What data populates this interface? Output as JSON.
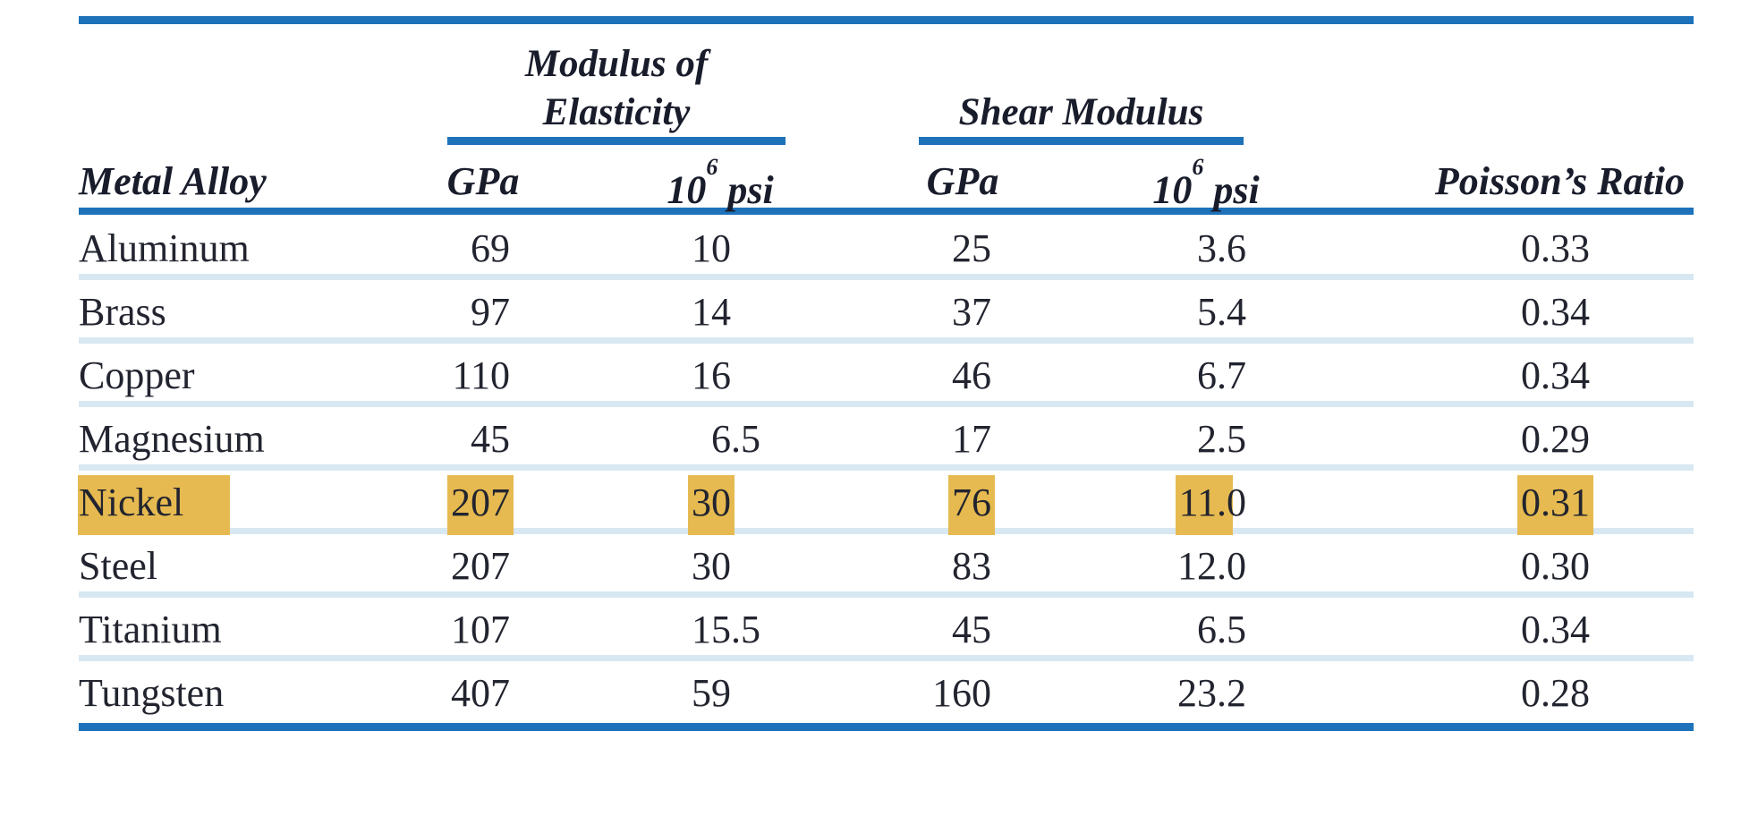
{
  "table": {
    "group1": {
      "line1": "Modulus of",
      "line2": "Elasticity"
    },
    "group2": {
      "line1": "Shear Modulus"
    },
    "col_headers": {
      "alloy": "Metal Alloy",
      "gpa_1": "GPa",
      "psi_base": "10",
      "psi_sup": "6",
      "psi_unit": "psi",
      "gpa_2": "GPa",
      "poisson": "Poisson’s Ratio"
    },
    "rows": [
      {
        "alloy": "Aluminum",
        "e_gpa": "69",
        "e_psi": "10",
        "g_gpa": "25",
        "g_psi": "3.6",
        "poisson": "0.33",
        "highlight": false
      },
      {
        "alloy": "Brass",
        "e_gpa": "97",
        "e_psi": "14",
        "g_gpa": "37",
        "g_psi": "5.4",
        "poisson": "0.34",
        "highlight": false
      },
      {
        "alloy": "Copper",
        "e_gpa": "110",
        "e_psi": "16",
        "g_gpa": "46",
        "g_psi": "6.7",
        "poisson": "0.34",
        "highlight": false
      },
      {
        "alloy": "Magnesium",
        "e_gpa": "45",
        "e_psi": "6.5",
        "g_gpa": "17",
        "g_psi": "2.5",
        "poisson": "0.29",
        "highlight": false
      },
      {
        "alloy": "Nickel",
        "e_gpa": "207",
        "e_psi": "30",
        "g_gpa": "76",
        "g_psi": "11.0",
        "poisson": "0.31",
        "highlight": true
      },
      {
        "alloy": "Steel",
        "e_gpa": "207",
        "e_psi": "30",
        "g_gpa": "83",
        "g_psi": "12.0",
        "poisson": "0.30",
        "highlight": false
      },
      {
        "alloy": "Titanium",
        "e_gpa": "107",
        "e_psi": "15.5",
        "g_gpa": "45",
        "g_psi": "6.5",
        "poisson": "0.34",
        "highlight": false
      },
      {
        "alloy": "Tungsten",
        "e_gpa": "407",
        "e_psi": "59",
        "g_gpa": "160",
        "g_psi": "23.2",
        "poisson": "0.28",
        "highlight": false
      }
    ]
  },
  "colors": {
    "accent_blue": "#1e72ba",
    "row_separator_blue": "#d8e8f2",
    "highlight_yellow": "#e6ba50",
    "text": "#22242f"
  }
}
